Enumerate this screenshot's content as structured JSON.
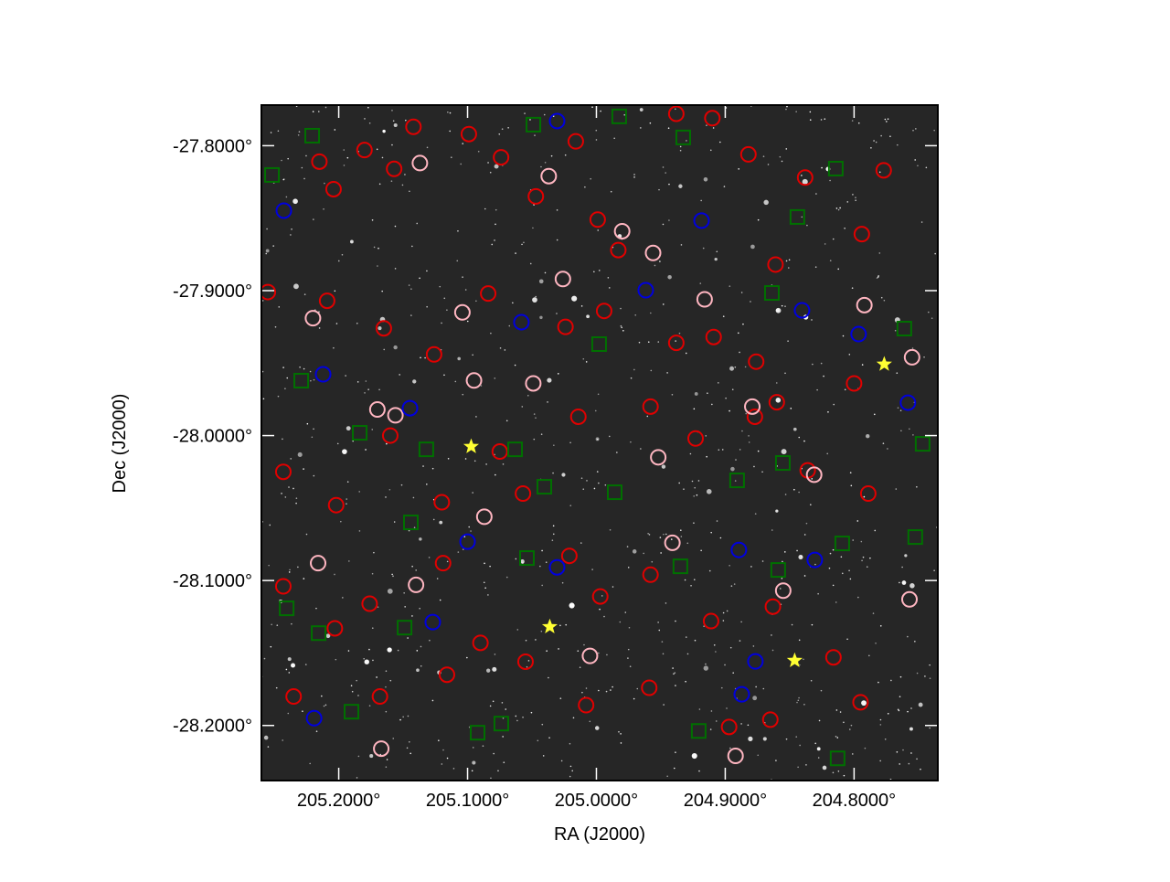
{
  "chart_data": {
    "type": "scatter",
    "xlabel": "RA (J2000)",
    "ylabel": "Dec (J2000)",
    "xlim": [
      205.26,
      204.735
    ],
    "ylim": [
      -28.238,
      -27.772
    ],
    "xticks": [
      {
        "value": 205.2,
        "label": "205.2000°"
      },
      {
        "value": 205.1,
        "label": "205.1000°"
      },
      {
        "value": 205.0,
        "label": "205.0000°"
      },
      {
        "value": 204.9,
        "label": "204.9000°"
      },
      {
        "value": 204.8,
        "label": "204.8000°"
      }
    ],
    "yticks": [
      {
        "value": -27.8,
        "label": "-27.8000°"
      },
      {
        "value": -27.9,
        "label": "-27.9000°"
      },
      {
        "value": -28.0,
        "label": "-28.0000°"
      },
      {
        "value": -28.1,
        "label": "-28.1000°"
      },
      {
        "value": -28.2,
        "label": "-28.2000°"
      }
    ],
    "series": [
      {
        "marker": "circle",
        "color": "#e00000",
        "x": [
          205.215,
          205.204,
          205.18,
          205.157,
          205.142,
          205.099,
          205.074,
          205.047,
          205.016,
          204.999,
          204.983,
          204.938,
          204.91,
          204.882,
          204.861,
          204.838,
          204.777,
          204.794,
          205.255,
          205.209,
          205.165,
          205.126,
          205.084,
          205.024,
          204.994,
          204.938,
          204.909,
          204.876,
          204.86,
          204.8,
          205.243,
          205.202,
          205.16,
          205.12,
          205.075,
          205.057,
          205.014,
          204.958,
          204.923,
          204.877,
          204.836,
          204.789,
          205.243,
          205.203,
          205.176,
          205.119,
          205.09,
          205.021,
          204.997,
          204.958,
          204.911,
          204.863,
          204.816,
          204.795,
          205.235,
          205.168,
          205.116,
          205.055,
          205.008,
          204.959,
          204.897,
          204.865
        ],
        "y": [
          -27.811,
          -27.83,
          -27.803,
          -27.816,
          -27.787,
          -27.792,
          -27.808,
          -27.835,
          -27.797,
          -27.851,
          -27.872,
          -27.778,
          -27.781,
          -27.806,
          -27.882,
          -27.822,
          -27.817,
          -27.861,
          -27.901,
          -27.907,
          -27.926,
          -27.944,
          -27.902,
          -27.925,
          -27.914,
          -27.936,
          -27.932,
          -27.949,
          -27.977,
          -27.964,
          -28.025,
          -28.048,
          -28.0,
          -28.046,
          -28.011,
          -28.04,
          -27.987,
          -27.98,
          -28.002,
          -27.987,
          -28.024,
          -28.04,
          -28.104,
          -28.133,
          -28.116,
          -28.088,
          -28.143,
          -28.083,
          -28.111,
          -28.096,
          -28.128,
          -28.118,
          -28.153,
          -28.184,
          -28.18,
          -28.18,
          -28.165,
          -28.156,
          -28.186,
          -28.174,
          -28.201,
          -28.196
        ]
      },
      {
        "marker": "circle",
        "color": "#ffb6c1",
        "x": [
          205.22,
          205.17,
          205.156,
          205.137,
          205.104,
          205.095,
          205.087,
          205.049,
          205.037,
          205.026,
          204.98,
          204.956,
          204.952,
          204.916,
          204.879,
          204.855,
          204.831,
          204.792,
          204.755,
          205.216,
          205.167,
          205.14,
          205.005,
          204.892,
          204.757,
          204.941
        ],
        "y": [
          -27.919,
          -27.982,
          -27.986,
          -27.812,
          -27.915,
          -27.962,
          -28.056,
          -27.964,
          -27.821,
          -27.892,
          -27.859,
          -27.874,
          -28.015,
          -27.906,
          -27.98,
          -28.107,
          -28.027,
          -27.91,
          -27.946,
          -28.088,
          -28.216,
          -28.103,
          -28.152,
          -28.221,
          -28.113,
          -28.074
        ]
      },
      {
        "marker": "circle",
        "color": "#0000dd",
        "x": [
          205.2426,
          205.2121,
          205.1447,
          205.1,
          205.0582,
          205.0305,
          205.127,
          204.9617,
          204.9184,
          204.8894,
          204.8766,
          204.8872,
          204.8404,
          204.8305,
          204.7965,
          204.7582,
          205.2191,
          205.0305
        ],
        "y": [
          -27.8448,
          -27.9577,
          -27.9811,
          -28.0732,
          -27.9218,
          -28.0909,
          -28.1287,
          -27.8997,
          -27.8517,
          -28.0789,
          -28.1558,
          -28.1785,
          -27.9136,
          -28.0858,
          -27.93,
          -27.9773,
          -28.195,
          -27.783
        ]
      },
      {
        "marker": "square",
        "color": "#007000",
        "x": [
          205.2206,
          205.2518,
          205.2291,
          205.1837,
          205.144,
          205.132,
          205.0631,
          205.0404,
          205.0539,
          204.9979,
          204.9858,
          204.9326,
          204.8908,
          204.8638,
          204.844,
          204.8553,
          204.8142,
          204.761,
          204.7468,
          204.9348,
          204.8589,
          204.8092,
          204.7525,
          205.2156,
          205.2404,
          205.1489,
          205.1901,
          205.0922,
          205.0738,
          204.9206,
          204.8128,
          205.0489,
          204.9823
        ],
        "y": [
          -27.7931,
          -27.8202,
          -27.9621,
          -27.9981,
          -28.0599,
          -28.0095,
          -28.0095,
          -28.0353,
          -28.0845,
          -27.9369,
          -28.0391,
          -27.7943,
          -28.0309,
          -27.9016,
          -27.8492,
          -28.0189,
          -27.8158,
          -27.9262,
          -28.0057,
          -28.0902,
          -28.0927,
          -28.0744,
          -28.07,
          -28.1363,
          -28.1192,
          -28.1325,
          -28.1905,
          -28.205,
          -28.1987,
          -28.2038,
          -28.2227,
          -27.7855,
          -27.7798
        ]
      },
      {
        "marker": "star",
        "color": "#ffff33",
        "x": [
          205.0972,
          205.0362,
          204.8461,
          204.7766
        ],
        "y": [
          -28.0076,
          -28.1319,
          -28.1552,
          -27.9508
        ]
      }
    ]
  }
}
